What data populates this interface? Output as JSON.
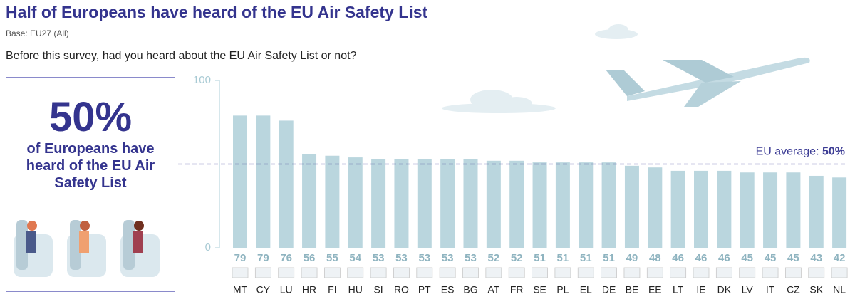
{
  "chart_data": {
    "type": "bar",
    "title": "Half of Europeans have heard of the EU Air Safety List",
    "subtitle": "Base: EU27 (All)",
    "question": "Before this survey, had you heard about the EU Air Safety List or not?",
    "callout": {
      "value": 50,
      "value_label": "50%",
      "text": "of Europeans have heard of the EU Air Safety List"
    },
    "reference_line": {
      "value": 50,
      "label": "EU average:",
      "value_label": "50%",
      "color": "#3b3b94"
    },
    "categories": [
      "MT",
      "CY",
      "LU",
      "HR",
      "FI",
      "HU",
      "SI",
      "RO",
      "PT",
      "ES",
      "BG",
      "AT",
      "FR",
      "SE",
      "PL",
      "EL",
      "DE",
      "BE",
      "EE",
      "LT",
      "IE",
      "DK",
      "LV",
      "IT",
      "CZ",
      "SK",
      "NL"
    ],
    "values": [
      79,
      79,
      76,
      56,
      55,
      54,
      53,
      53,
      53,
      53,
      53,
      52,
      52,
      51,
      51,
      51,
      51,
      49,
      48,
      46,
      46,
      46,
      45,
      45,
      45,
      43,
      42
    ],
    "color": "#bad6de",
    "ylim": [
      0,
      100
    ],
    "yticks": [
      0,
      100
    ],
    "grid": false
  }
}
